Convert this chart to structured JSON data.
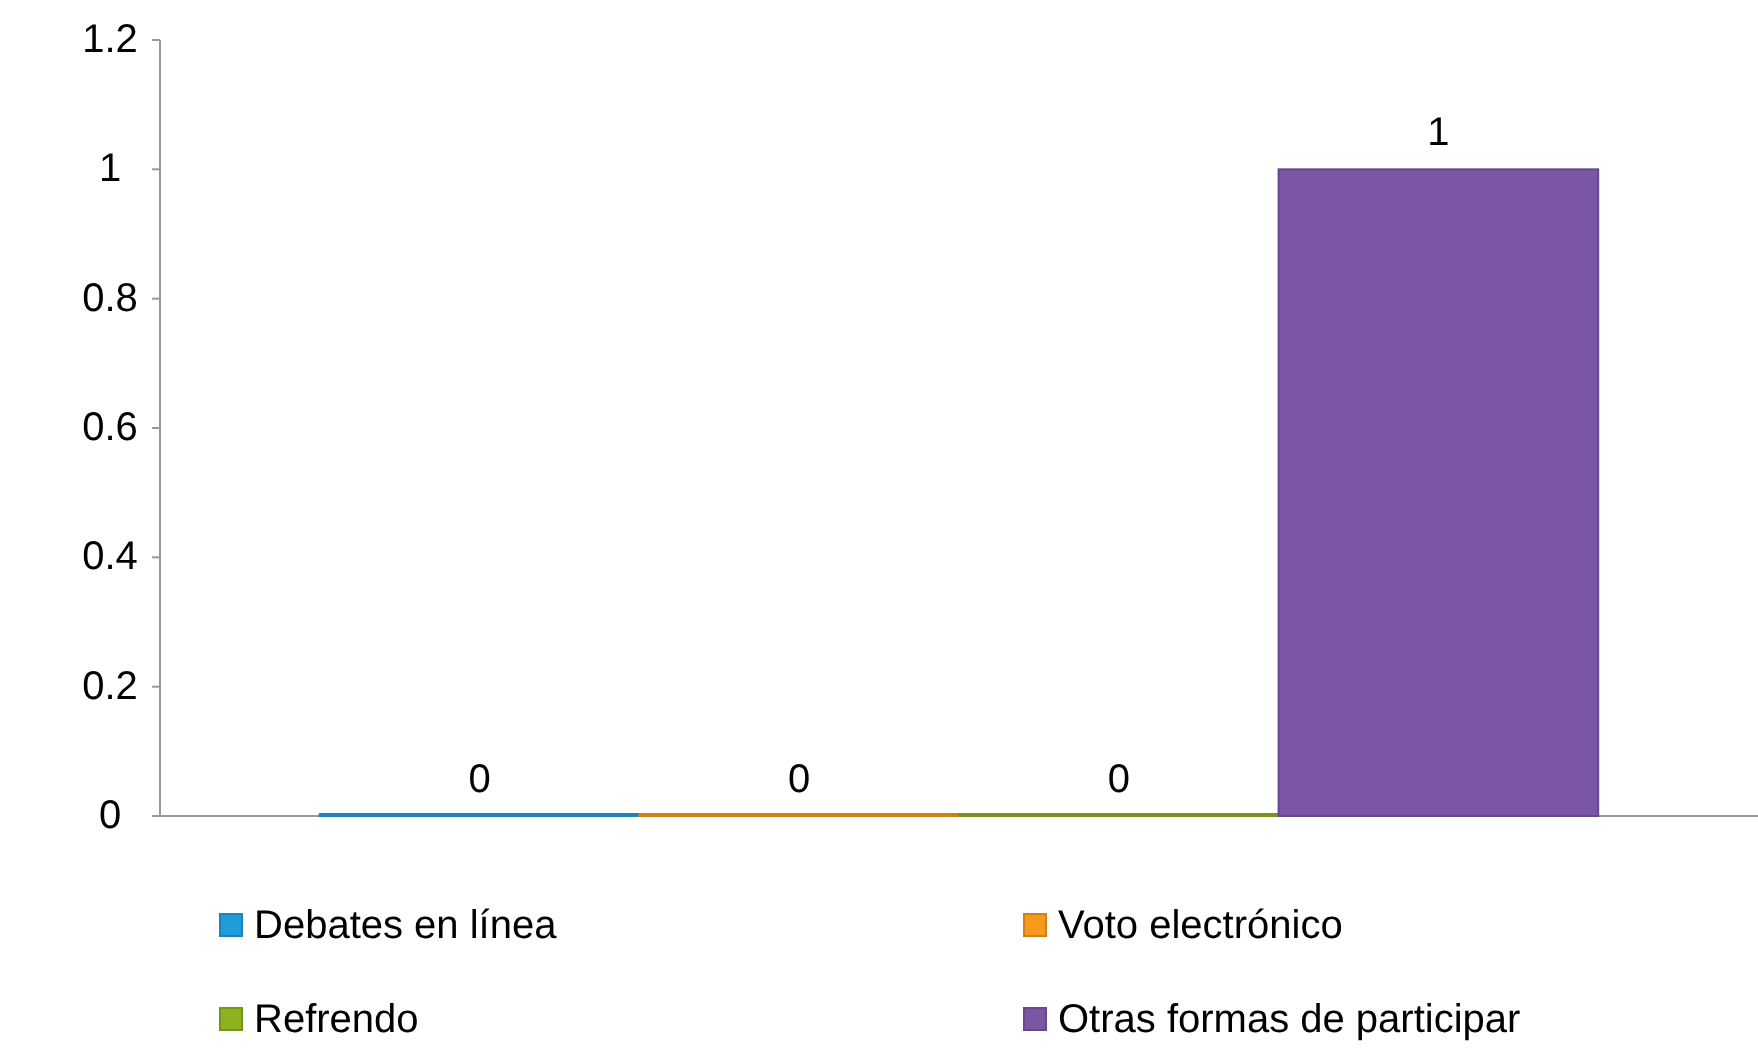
{
  "chart_data": {
    "type": "bar",
    "categories": [
      null
    ],
    "series": [
      {
        "name": "Debates en línea",
        "color": "#1f9ddb",
        "values": [
          0
        ]
      },
      {
        "name": "Voto electrónico",
        "color": "#f59a1a",
        "values": [
          0
        ]
      },
      {
        "name": "Refrendo",
        "color": "#8cb21e",
        "values": [
          0
        ]
      },
      {
        "name": "Otras formas de participar",
        "color": "#7b56a6",
        "values": [
          1
        ]
      }
    ],
    "ylim": [
      0,
      1.2
    ],
    "yticks": [
      0,
      0.2,
      0.4,
      0.6,
      0.8,
      1,
      1.2
    ],
    "grid": false,
    "data_labels": true,
    "legend": "bottom"
  }
}
